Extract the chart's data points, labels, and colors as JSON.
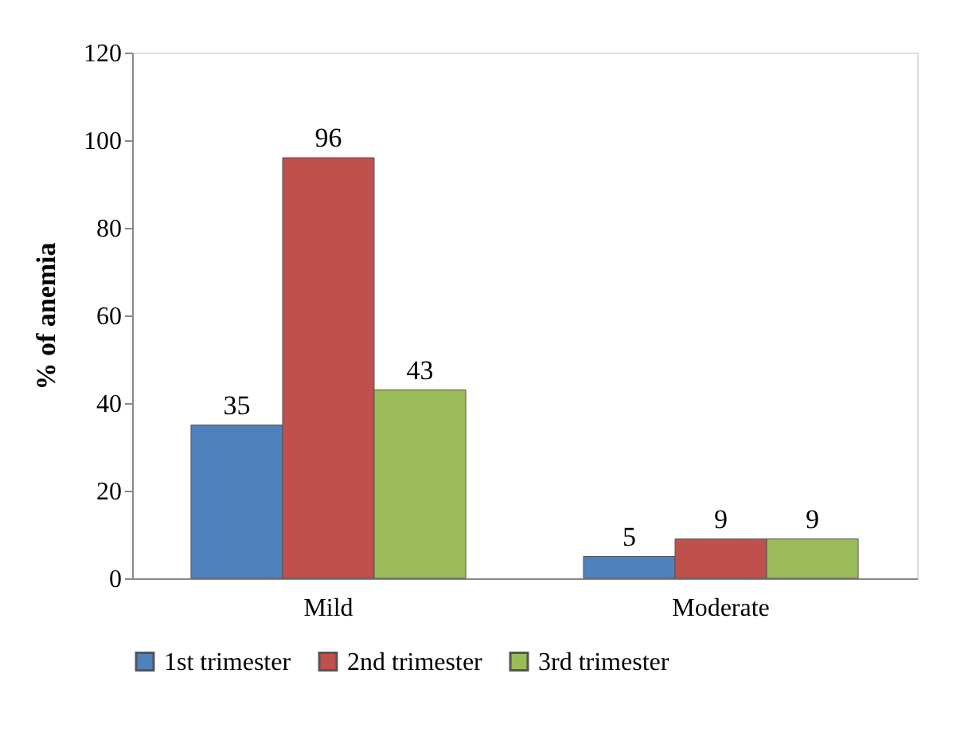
{
  "chart_data": {
    "type": "bar",
    "ylabel": "% of anemia",
    "categories": [
      "Mild",
      "Moderate"
    ],
    "series": [
      {
        "name": "1st trimester",
        "color": "#4f81bd",
        "values": [
          35,
          5
        ]
      },
      {
        "name": "2nd trimester",
        "color": "#c0504d",
        "values": [
          96,
          9
        ]
      },
      {
        "name": "3rd trimester",
        "color": "#9bbb59",
        "values": [
          43,
          9
        ]
      }
    ],
    "ylim": [
      0,
      120
    ],
    "yticks": [
      0,
      20,
      40,
      60,
      80,
      100,
      120
    ],
    "data_labels": true,
    "legend": "bottom",
    "grid": false
  }
}
